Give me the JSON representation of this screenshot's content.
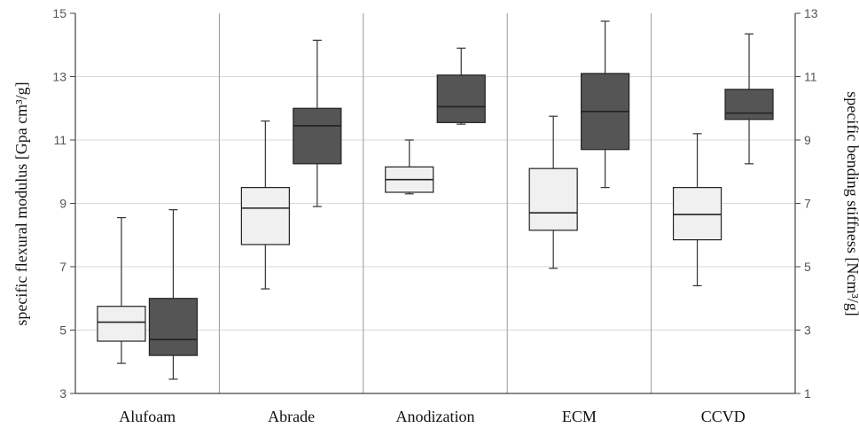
{
  "chart_data": {
    "type": "box",
    "categories": [
      "Alufoam",
      "Abrade",
      "Anodization",
      "ECM",
      "CCVD"
    ],
    "y_left": {
      "label": "specific flexural modulus [Gpa cm³/g]",
      "range": [
        3,
        15
      ],
      "ticks": [
        "3",
        "5",
        "7",
        "9",
        "11",
        "13",
        "15"
      ]
    },
    "y_right": {
      "label": "specific bending stiffness [Ncm³/g]",
      "range": [
        1,
        13
      ],
      "ticks": [
        "1",
        "3",
        "5",
        "7",
        "9",
        "11",
        "13"
      ]
    },
    "grid": true,
    "series": [
      {
        "axis": "left",
        "color": "#f0f0f0",
        "boxes": [
          {
            "min": 3.95,
            "q1": 4.65,
            "median": 5.25,
            "q3": 5.75,
            "max": 8.55
          },
          {
            "min": 6.3,
            "q1": 7.7,
            "median": 8.85,
            "q3": 9.5,
            "max": 11.6
          },
          {
            "min": 9.3,
            "q1": 9.35,
            "median": 9.75,
            "q3": 10.15,
            "max": 11.0
          },
          {
            "min": 6.95,
            "q1": 8.15,
            "median": 8.7,
            "q3": 10.1,
            "max": 11.75
          },
          {
            "min": 6.4,
            "q1": 7.85,
            "median": 8.65,
            "q3": 9.5,
            "max": 11.2
          }
        ]
      },
      {
        "axis": "right",
        "color": "#555555",
        "boxes": [
          {
            "min": 1.45,
            "q1": 2.2,
            "median": 2.7,
            "q3": 4.0,
            "max": 6.8
          },
          {
            "min": 6.9,
            "q1": 8.25,
            "median": 9.45,
            "q3": 10.0,
            "max": 12.15
          },
          {
            "min": 9.5,
            "q1": 9.55,
            "median": 10.05,
            "q3": 11.05,
            "max": 11.9
          },
          {
            "min": 7.5,
            "q1": 8.7,
            "median": 9.9,
            "q3": 11.1,
            "max": 12.75
          },
          {
            "min": 8.25,
            "q1": 9.65,
            "median": 9.85,
            "q3": 10.6,
            "max": 12.35
          }
        ]
      }
    ]
  }
}
